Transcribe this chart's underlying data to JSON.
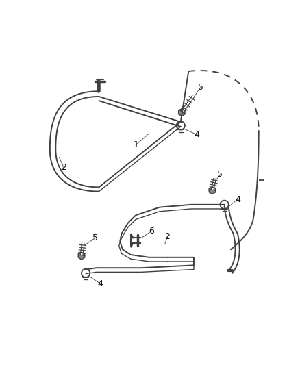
{
  "bg_color": "#ffffff",
  "line_color": "#404040",
  "fig_width": 4.38,
  "fig_height": 5.33,
  "dpi": 100,
  "lw_main": 1.4,
  "lw_thin": 1.0,
  "lw_callout": 0.7
}
